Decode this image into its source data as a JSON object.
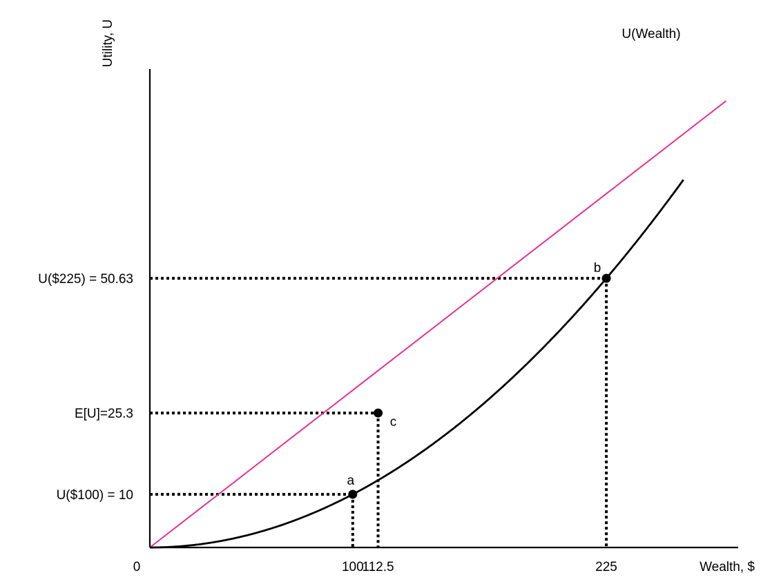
{
  "chart_data": {
    "type": "line",
    "title": "",
    "xlabel": "Wealth, $",
    "ylabel": "Utility, U",
    "xlim": [
      0,
      290
    ],
    "ylim": [
      0,
      90
    ],
    "grid": false,
    "colors": {
      "axis": "#000000",
      "curve": "#000000",
      "line": "#e8308c",
      "guides": "#000000"
    },
    "series": [
      {
        "name": "U(Wealth)",
        "function": "U = W^2 / 1000",
        "x": [
          0,
          25,
          50,
          75,
          100,
          112.5,
          125,
          150,
          175,
          200,
          225,
          250,
          263
        ],
        "y": [
          0,
          0.6,
          2.5,
          5.6,
          10,
          12.7,
          15.6,
          22.5,
          30.6,
          40,
          50.63,
          62.5,
          69.2
        ]
      },
      {
        "name": "",
        "function": "linear",
        "x": [
          0,
          284
        ],
        "y": [
          0,
          84
        ]
      }
    ],
    "points": [
      {
        "label": "a",
        "x": 100,
        "y": 10
      },
      {
        "label": "b",
        "x": 225,
        "y": 50.63
      },
      {
        "label": "c",
        "x": 112.5,
        "y": 25.3
      }
    ],
    "x_ticks": [
      {
        "value": 0,
        "label": "0"
      },
      {
        "value": 100,
        "label": "100"
      },
      {
        "value": 112.5,
        "label": "112.5"
      },
      {
        "value": 225,
        "label": "225"
      }
    ],
    "y_ticks": [
      {
        "value": 10,
        "label": "U($100) = 10"
      },
      {
        "value": 25.3,
        "label": "E[U]=25.3"
      },
      {
        "value": 50.63,
        "label": "U($225) = 50.63"
      }
    ]
  }
}
